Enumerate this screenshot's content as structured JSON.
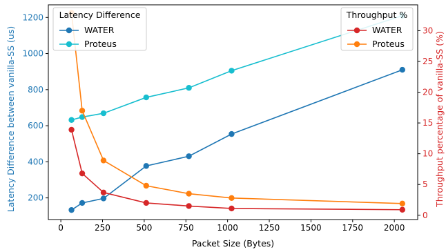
{
  "chart_data": {
    "type": "line",
    "xlabel": "Packet Size (Bytes)",
    "xlim": [
      -75,
      2140
    ],
    "xticks": [
      0,
      250,
      500,
      750,
      1000,
      1250,
      1500,
      1750,
      2000
    ],
    "grid": false,
    "left_axis": {
      "label": "Latency Difference between vanilla-SS (us)",
      "color": "#1f77b4",
      "ylim": [
        80,
        1270
      ],
      "ticks": [
        200,
        400,
        600,
        800,
        1000,
        1200
      ]
    },
    "right_axis": {
      "label": "Throughput percentage of vanilla-SS (%)",
      "color": "#d62728",
      "ylim": [
        -0.7,
        34.2
      ],
      "ticks": [
        0,
        5,
        10,
        15,
        20,
        25,
        30
      ]
    },
    "left_legend": {
      "title": "Latency Difference",
      "position": "upper-left",
      "series": [
        {
          "name": "WATER",
          "color": "#1f77b4",
          "x": [
            64,
            128,
            256,
            512,
            768,
            1024,
            2048
          ],
          "values": [
            133,
            172,
            197,
            377,
            431,
            554,
            910
          ]
        },
        {
          "name": "Proteus",
          "color": "#17becf",
          "x": [
            64,
            128,
            256,
            512,
            768,
            1024,
            2048
          ],
          "values": [
            632,
            648,
            669,
            757,
            810,
            905,
            1210
          ]
        }
      ]
    },
    "right_legend": {
      "title": "Throughput %",
      "position": "upper-right",
      "series": [
        {
          "name": "WATER",
          "color": "#d62728",
          "x": [
            64,
            128,
            256,
            512,
            768,
            1024,
            2048
          ],
          "values": [
            13.9,
            6.8,
            3.7,
            2.0,
            1.5,
            1.1,
            0.9
          ]
        },
        {
          "name": "Proteus",
          "color": "#ff7f0e",
          "x": [
            64,
            128,
            256,
            512,
            768,
            1024,
            2048
          ],
          "values": [
            32.9,
            17.0,
            8.9,
            4.8,
            3.5,
            2.8,
            1.9
          ]
        }
      ]
    }
  }
}
